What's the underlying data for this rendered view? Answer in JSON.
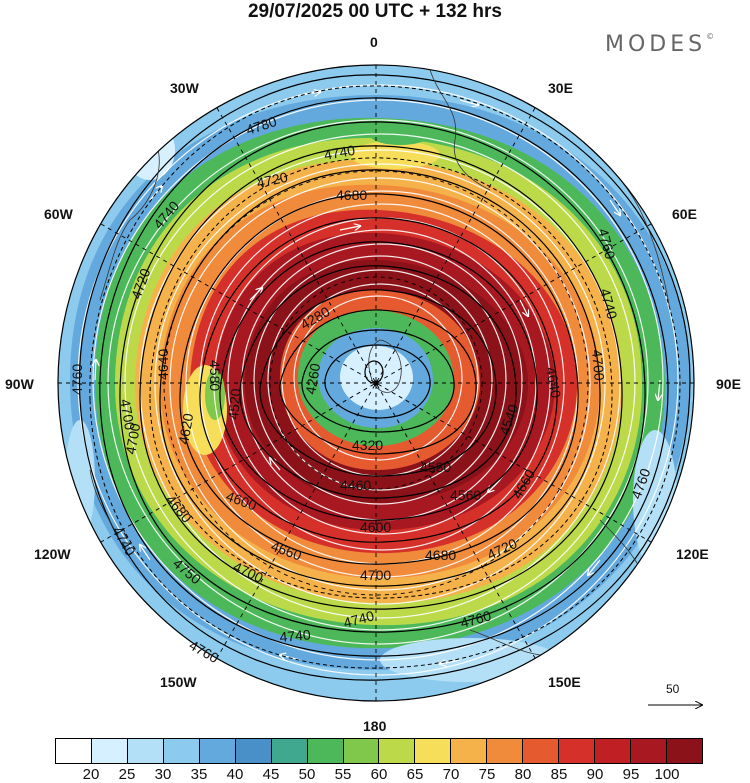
{
  "header": {
    "title": "29/07/2025  00 UTC  + 132 hrs",
    "brand": "MODES"
  },
  "longitude_labels": [
    {
      "text": "0",
      "pos": "top"
    },
    {
      "text": "30E",
      "pos": "top-right"
    },
    {
      "text": "60E",
      "pos": "right-upper"
    },
    {
      "text": "90E",
      "pos": "right"
    },
    {
      "text": "120E",
      "pos": "right-lower"
    },
    {
      "text": "150E",
      "pos": "bottom-right"
    },
    {
      "text": "180",
      "pos": "bottom"
    },
    {
      "text": "150W",
      "pos": "bottom-left"
    },
    {
      "text": "120W",
      "pos": "left-lower"
    },
    {
      "text": "90W",
      "pos": "left"
    },
    {
      "text": "60W",
      "pos": "left-upper"
    },
    {
      "text": "30W",
      "pos": "top-left"
    }
  ],
  "contour_labels": [
    "4780",
    "4740",
    "4720",
    "4680",
    "4760",
    "4740",
    "4720",
    "4700",
    "4640",
    "4580",
    "4700",
    "4760",
    "4620",
    "4600",
    "4680",
    "4740",
    "4660",
    "4700",
    "4750",
    "4760",
    "4740",
    "4740",
    "4760",
    "4700",
    "4600",
    "4560",
    "4580",
    "4320",
    "4280",
    "4260",
    "4640",
    "4540",
    "4660",
    "4680",
    "4720",
    "4760",
    "4740",
    "4700",
    "4520",
    "4460"
  ],
  "vector_scale": {
    "value": "50"
  },
  "colorbar": {
    "colors": [
      "#ffffff",
      "#d6f0ff",
      "#b4e0f7",
      "#8ccbee",
      "#64a9dd",
      "#4a90c8",
      "#3fa88f",
      "#4cb85a",
      "#80c84c",
      "#bcd94a",
      "#f7de5a",
      "#f6b24a",
      "#f08b3c",
      "#e65a30",
      "#d6302a",
      "#c01f24",
      "#a71820",
      "#8a1218"
    ],
    "labels": [
      "20",
      "25",
      "30",
      "35",
      "40",
      "45",
      "50",
      "55",
      "60",
      "65",
      "70",
      "75",
      "80",
      "85",
      "90",
      "95",
      "100"
    ]
  }
}
